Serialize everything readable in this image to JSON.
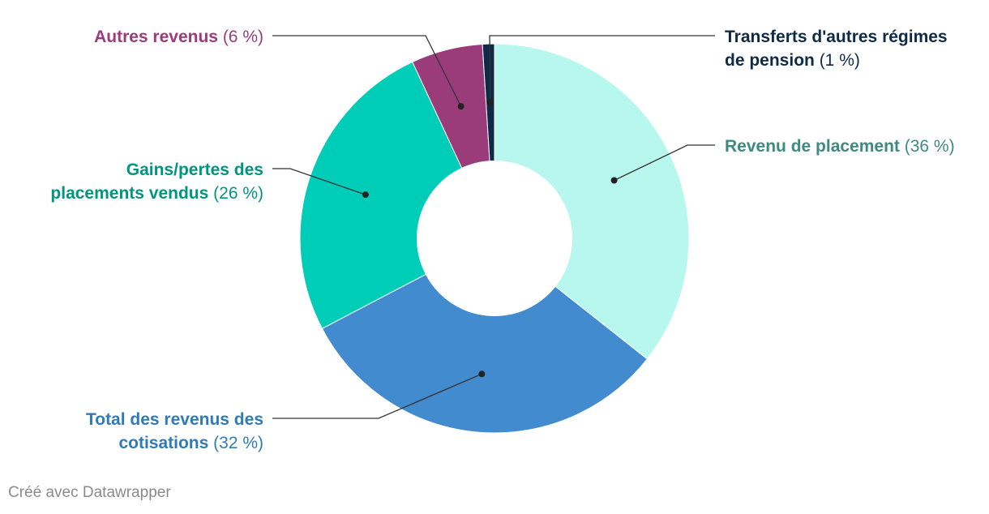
{
  "chart_data": {
    "type": "pie",
    "donut": true,
    "slices": [
      {
        "name_lines": [
          "Revenu de placement"
        ],
        "percent_label": "(36 %)",
        "value": 36,
        "color": "#b8f7ee",
        "text_color": "#3f8a80"
      },
      {
        "name_lines": [
          "Total des revenus des",
          "cotisations"
        ],
        "percent_label": "(32 %)",
        "value": 32,
        "color": "#418bce",
        "text_color": "#2f7ab8"
      },
      {
        "name_lines": [
          "Gains/pertes des",
          "placements vendus"
        ],
        "percent_label": "(26 %)",
        "value": 26,
        "color": "#00cdb8",
        "text_color": "#00957f"
      },
      {
        "name_lines": [
          "Autres revenus"
        ],
        "percent_label": "(6 %)",
        "value": 6,
        "color": "#9a3b7a",
        "text_color": "#9a3b7a"
      },
      {
        "name_lines": [
          "Transferts d'autres régimes",
          "de pension"
        ],
        "percent_label": "(1 %)",
        "value": 1,
        "color": "#0e2a47",
        "text_color": "#0e2a47"
      }
    ],
    "legend": "none",
    "labels": "outside with leader lines"
  },
  "footer": {
    "credit": "Créé avec Datawrapper"
  }
}
